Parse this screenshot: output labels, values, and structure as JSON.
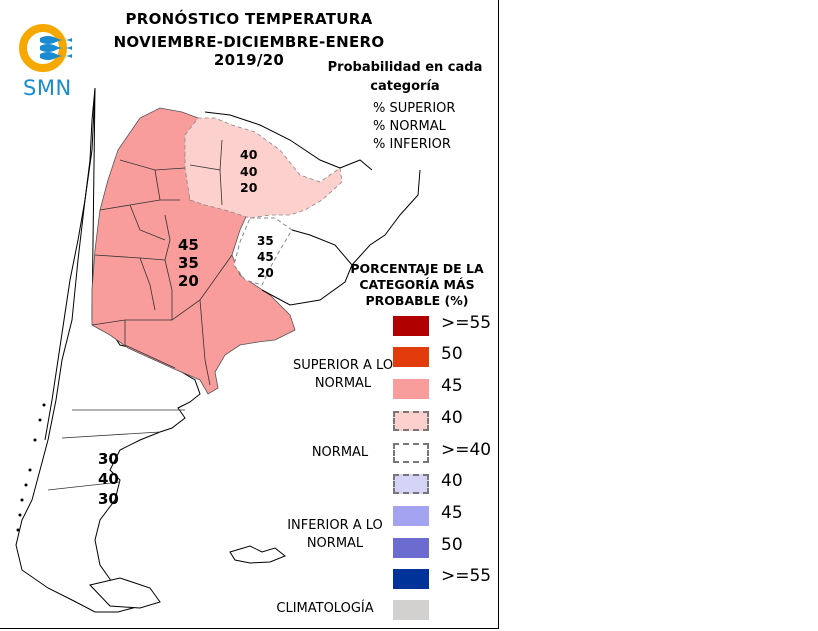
{
  "header": {
    "title_line1": "PRONÓSTICO TEMPERATURA",
    "title_line2": "NOVIEMBRE-DICIEMBRE-ENERO 2019/20",
    "logo_text": "SMN"
  },
  "probability_box": {
    "title": "Probabilidad en cada categoría",
    "items": [
      "% SUPERIOR",
      "% NORMAL",
      "% INFERIOR"
    ]
  },
  "map_labels": {
    "northeast": [
      "40",
      "40",
      "20"
    ],
    "center": [
      "45",
      "35",
      "20"
    ],
    "east": [
      "35",
      "45",
      "20"
    ],
    "south": [
      "30",
      "40",
      "30"
    ]
  },
  "legend": {
    "title": "PORCENTAJE DE LA CATEGORÍA MÁS PROBABLE (%)",
    "entries": [
      {
        "label": ">=55",
        "color": "#b00000",
        "dashed": false
      },
      {
        "label": "50",
        "color": "#e23b0c",
        "dashed": false
      },
      {
        "label": "45",
        "color": "#f99c9c",
        "dashed": false
      },
      {
        "label": "40",
        "color": "#fcd0cc",
        "dashed": true
      },
      {
        "label": ">=40",
        "color": "#ffffff",
        "dashed": true
      },
      {
        "label": "40",
        "color": "#d4d4f7",
        "dashed": true
      },
      {
        "label": "45",
        "color": "#a3a3f2",
        "dashed": false
      },
      {
        "label": "50",
        "color": "#6b6bd0",
        "dashed": false
      },
      {
        "label": ">=55",
        "color": "#003399",
        "dashed": false
      },
      {
        "label": "",
        "color": "#d3d1cf",
        "dashed": false
      }
    ],
    "category_superior": "SUPERIOR A LO NORMAL",
    "category_normal": "NORMAL",
    "category_inferior": "INFERIOR A LO NORMAL",
    "category_climatologia": "CLIMATOLOGÍA"
  },
  "colors": {
    "superior_45": "#f99c9c",
    "superior_40": "#fcd0cc",
    "logo_orange": "#f6a800",
    "logo_blue": "#1a8bd1"
  }
}
